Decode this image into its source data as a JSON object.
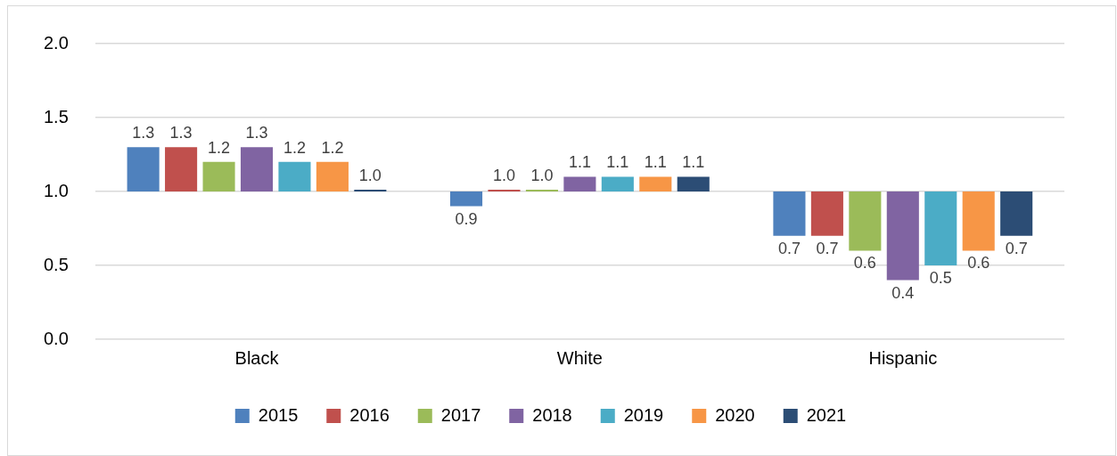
{
  "chart_data": {
    "type": "bar",
    "categories": [
      "Black",
      "White",
      "Hispanic"
    ],
    "series": [
      {
        "name": "2015",
        "color": "#4f81bd",
        "base": [
          1,
          1,
          1
        ],
        "values": [
          0.3,
          -0.1,
          -0.3
        ],
        "value_labels": [
          "1.3",
          "0.9",
          "0.7"
        ]
      },
      {
        "name": "2016",
        "color": "#c0504d",
        "base": [
          1,
          1,
          1
        ],
        "values": [
          0.3,
          0,
          -0.3
        ],
        "value_labels": [
          "1.3",
          "1.0",
          "0.7"
        ]
      },
      {
        "name": "2017",
        "color": "#9bbb59",
        "base": [
          1,
          1,
          1
        ],
        "values": [
          0.2,
          0,
          -0.4
        ],
        "value_labels": [
          "1.2",
          "1.0",
          "0.6"
        ]
      },
      {
        "name": "2018",
        "color": "#8064a2",
        "base": [
          1,
          1,
          1
        ],
        "values": [
          0.3,
          0.1,
          -0.6
        ],
        "value_labels": [
          "1.3",
          "1.1",
          "0.4"
        ]
      },
      {
        "name": "2019",
        "color": "#4bacc6",
        "base": [
          1,
          1,
          1
        ],
        "values": [
          0.2,
          0.1,
          -0.5
        ],
        "value_labels": [
          "1.2",
          "1.1",
          "0.5"
        ]
      },
      {
        "name": "2020",
        "color": "#f79646",
        "base": [
          1,
          1,
          1
        ],
        "values": [
          0.2,
          0.1,
          -0.4
        ],
        "value_labels": [
          "1.2",
          "1.1",
          "0.6"
        ]
      },
      {
        "name": "2021",
        "color": "#2c4d75",
        "base": [
          1,
          1,
          1
        ],
        "values": [
          0,
          0.1,
          -0.3
        ],
        "value_labels": [
          "1.0",
          "1.1",
          "0.7"
        ]
      }
    ],
    "ylim": [
      0,
      2
    ],
    "yticks": [
      {
        "value": 0,
        "label": "0.0"
      },
      {
        "value": 0.5,
        "label": "0.5"
      },
      {
        "value": 1,
        "label": "1.0"
      },
      {
        "value": 1.5,
        "label": "1.5"
      },
      {
        "value": 2,
        "label": "2.0"
      }
    ],
    "grid": "y",
    "legend": "bottom"
  }
}
